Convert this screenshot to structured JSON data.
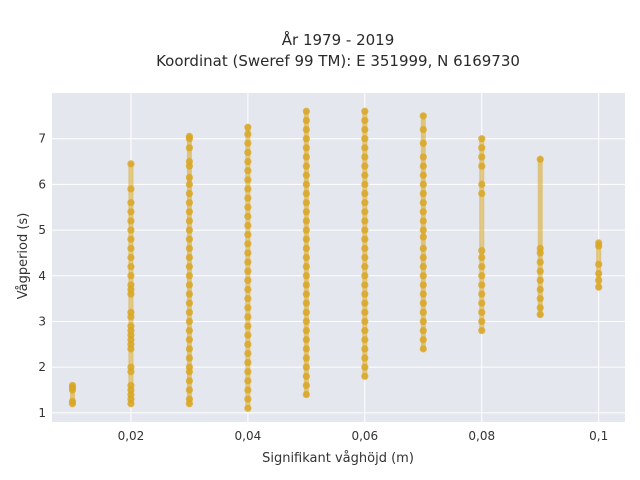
{
  "chart_data": {
    "type": "scatter",
    "title_line1": "År 1979 - 2019",
    "title_line2": "Koordinat (Sweref 99 TM): E 351999, N 6169730",
    "xlabel": "Signifikant våghöjd (m)",
    "ylabel": "Vågperiod (s)",
    "xlim": [
      0.0065,
      0.1045
    ],
    "ylim": [
      0.8,
      8.0
    ],
    "xticks": [
      0.02,
      0.04,
      0.06,
      0.08,
      0.1
    ],
    "xtick_labels": [
      "0,02",
      "0,04",
      "0,06",
      "0,08",
      "0,1"
    ],
    "yticks": [
      1,
      2,
      3,
      4,
      5,
      6,
      7
    ],
    "ytick_labels": [
      "1",
      "2",
      "3",
      "4",
      "5",
      "6",
      "7"
    ],
    "grid": true,
    "legend": "none",
    "colors": {
      "plot_bg": "#e5e7ee",
      "grid": "#ffffff",
      "marker": "#d9a521"
    },
    "series": [
      {
        "values": [
          [
            0.01,
            1.2
          ],
          [
            0.01,
            1.25
          ],
          [
            0.01,
            1.5
          ],
          [
            0.01,
            1.55
          ],
          [
            0.01,
            1.6
          ],
          [
            0.02,
            1.2
          ],
          [
            0.02,
            1.3
          ],
          [
            0.02,
            1.4
          ],
          [
            0.02,
            1.5
          ],
          [
            0.02,
            1.6
          ],
          [
            0.02,
            1.9
          ],
          [
            0.02,
            2.0
          ],
          [
            0.02,
            2.4
          ],
          [
            0.02,
            2.5
          ],
          [
            0.02,
            2.6
          ],
          [
            0.02,
            2.7
          ],
          [
            0.02,
            2.8
          ],
          [
            0.02,
            2.9
          ],
          [
            0.02,
            3.1
          ],
          [
            0.02,
            3.2
          ],
          [
            0.02,
            3.6
          ],
          [
            0.02,
            3.7
          ],
          [
            0.02,
            3.8
          ],
          [
            0.02,
            4.0
          ],
          [
            0.02,
            4.2
          ],
          [
            0.02,
            4.4
          ],
          [
            0.02,
            4.6
          ],
          [
            0.02,
            4.8
          ],
          [
            0.02,
            5.0
          ],
          [
            0.02,
            5.2
          ],
          [
            0.02,
            5.4
          ],
          [
            0.02,
            5.6
          ],
          [
            0.02,
            5.9
          ],
          [
            0.02,
            6.45
          ],
          [
            0.03,
            1.2
          ],
          [
            0.03,
            1.3
          ],
          [
            0.03,
            1.5
          ],
          [
            0.03,
            1.7
          ],
          [
            0.03,
            1.9
          ],
          [
            0.03,
            2.0
          ],
          [
            0.03,
            2.2
          ],
          [
            0.03,
            2.4
          ],
          [
            0.03,
            2.6
          ],
          [
            0.03,
            2.8
          ],
          [
            0.03,
            3.0
          ],
          [
            0.03,
            3.2
          ],
          [
            0.03,
            3.4
          ],
          [
            0.03,
            3.6
          ],
          [
            0.03,
            3.8
          ],
          [
            0.03,
            4.0
          ],
          [
            0.03,
            4.2
          ],
          [
            0.03,
            4.4
          ],
          [
            0.03,
            4.6
          ],
          [
            0.03,
            4.8
          ],
          [
            0.03,
            5.0
          ],
          [
            0.03,
            5.2
          ],
          [
            0.03,
            5.4
          ],
          [
            0.03,
            5.6
          ],
          [
            0.03,
            5.8
          ],
          [
            0.03,
            6.0
          ],
          [
            0.03,
            6.15
          ],
          [
            0.03,
            6.4
          ],
          [
            0.03,
            6.5
          ],
          [
            0.03,
            6.8
          ],
          [
            0.03,
            7.0
          ],
          [
            0.03,
            7.05
          ],
          [
            0.04,
            1.1
          ],
          [
            0.04,
            1.3
          ],
          [
            0.04,
            1.5
          ],
          [
            0.04,
            1.7
          ],
          [
            0.04,
            1.9
          ],
          [
            0.04,
            2.1
          ],
          [
            0.04,
            2.3
          ],
          [
            0.04,
            2.5
          ],
          [
            0.04,
            2.7
          ],
          [
            0.04,
            2.9
          ],
          [
            0.04,
            3.1
          ],
          [
            0.04,
            3.3
          ],
          [
            0.04,
            3.5
          ],
          [
            0.04,
            3.7
          ],
          [
            0.04,
            3.9
          ],
          [
            0.04,
            4.1
          ],
          [
            0.04,
            4.3
          ],
          [
            0.04,
            4.5
          ],
          [
            0.04,
            4.7
          ],
          [
            0.04,
            4.9
          ],
          [
            0.04,
            5.1
          ],
          [
            0.04,
            5.3
          ],
          [
            0.04,
            5.5
          ],
          [
            0.04,
            5.7
          ],
          [
            0.04,
            5.9
          ],
          [
            0.04,
            6.1
          ],
          [
            0.04,
            6.3
          ],
          [
            0.04,
            6.5
          ],
          [
            0.04,
            6.7
          ],
          [
            0.04,
            6.9
          ],
          [
            0.04,
            7.1
          ],
          [
            0.04,
            7.25
          ],
          [
            0.05,
            1.4
          ],
          [
            0.05,
            1.6
          ],
          [
            0.05,
            1.8
          ],
          [
            0.05,
            2.0
          ],
          [
            0.05,
            2.2
          ],
          [
            0.05,
            2.4
          ],
          [
            0.05,
            2.6
          ],
          [
            0.05,
            2.8
          ],
          [
            0.05,
            3.0
          ],
          [
            0.05,
            3.2
          ],
          [
            0.05,
            3.4
          ],
          [
            0.05,
            3.6
          ],
          [
            0.05,
            3.8
          ],
          [
            0.05,
            4.0
          ],
          [
            0.05,
            4.2
          ],
          [
            0.05,
            4.4
          ],
          [
            0.05,
            4.6
          ],
          [
            0.05,
            4.8
          ],
          [
            0.05,
            5.0
          ],
          [
            0.05,
            5.2
          ],
          [
            0.05,
            5.4
          ],
          [
            0.05,
            5.6
          ],
          [
            0.05,
            5.8
          ],
          [
            0.05,
            6.0
          ],
          [
            0.05,
            6.2
          ],
          [
            0.05,
            6.4
          ],
          [
            0.05,
            6.6
          ],
          [
            0.05,
            6.8
          ],
          [
            0.05,
            7.0
          ],
          [
            0.05,
            7.2
          ],
          [
            0.05,
            7.4
          ],
          [
            0.05,
            7.6
          ],
          [
            0.06,
            1.8
          ],
          [
            0.06,
            2.0
          ],
          [
            0.06,
            2.2
          ],
          [
            0.06,
            2.4
          ],
          [
            0.06,
            2.6
          ],
          [
            0.06,
            2.8
          ],
          [
            0.06,
            3.0
          ],
          [
            0.06,
            3.2
          ],
          [
            0.06,
            3.4
          ],
          [
            0.06,
            3.6
          ],
          [
            0.06,
            3.8
          ],
          [
            0.06,
            4.0
          ],
          [
            0.06,
            4.2
          ],
          [
            0.06,
            4.4
          ],
          [
            0.06,
            4.6
          ],
          [
            0.06,
            4.8
          ],
          [
            0.06,
            5.0
          ],
          [
            0.06,
            5.2
          ],
          [
            0.06,
            5.4
          ],
          [
            0.06,
            5.6
          ],
          [
            0.06,
            5.8
          ],
          [
            0.06,
            6.0
          ],
          [
            0.06,
            6.2
          ],
          [
            0.06,
            6.4
          ],
          [
            0.06,
            6.6
          ],
          [
            0.06,
            6.8
          ],
          [
            0.06,
            7.0
          ],
          [
            0.06,
            7.2
          ],
          [
            0.06,
            7.4
          ],
          [
            0.06,
            7.6
          ],
          [
            0.07,
            2.4
          ],
          [
            0.07,
            2.6
          ],
          [
            0.07,
            2.8
          ],
          [
            0.07,
            3.0
          ],
          [
            0.07,
            3.2
          ],
          [
            0.07,
            3.4
          ],
          [
            0.07,
            3.6
          ],
          [
            0.07,
            3.8
          ],
          [
            0.07,
            4.0
          ],
          [
            0.07,
            4.2
          ],
          [
            0.07,
            4.4
          ],
          [
            0.07,
            4.6
          ],
          [
            0.07,
            4.85
          ],
          [
            0.07,
            5.0
          ],
          [
            0.07,
            5.2
          ],
          [
            0.07,
            5.4
          ],
          [
            0.07,
            5.6
          ],
          [
            0.07,
            5.8
          ],
          [
            0.07,
            6.0
          ],
          [
            0.07,
            6.2
          ],
          [
            0.07,
            6.4
          ],
          [
            0.07,
            6.6
          ],
          [
            0.07,
            6.9
          ],
          [
            0.07,
            7.2
          ],
          [
            0.07,
            7.5
          ],
          [
            0.08,
            2.8
          ],
          [
            0.08,
            3.0
          ],
          [
            0.08,
            3.2
          ],
          [
            0.08,
            3.4
          ],
          [
            0.08,
            3.6
          ],
          [
            0.08,
            3.8
          ],
          [
            0.08,
            4.0
          ],
          [
            0.08,
            4.2
          ],
          [
            0.08,
            4.4
          ],
          [
            0.08,
            4.55
          ],
          [
            0.08,
            5.8
          ],
          [
            0.08,
            6.0
          ],
          [
            0.08,
            6.4
          ],
          [
            0.08,
            6.6
          ],
          [
            0.08,
            6.8
          ],
          [
            0.08,
            7.0
          ],
          [
            0.09,
            3.15
          ],
          [
            0.09,
            3.3
          ],
          [
            0.09,
            3.5
          ],
          [
            0.09,
            3.7
          ],
          [
            0.09,
            3.9
          ],
          [
            0.09,
            4.1
          ],
          [
            0.09,
            4.3
          ],
          [
            0.09,
            4.5
          ],
          [
            0.09,
            4.6
          ],
          [
            0.09,
            6.55
          ],
          [
            0.1,
            3.75
          ],
          [
            0.1,
            3.9
          ],
          [
            0.1,
            4.05
          ],
          [
            0.1,
            4.25
          ],
          [
            0.1,
            4.65
          ],
          [
            0.1,
            4.72
          ]
        ]
      }
    ]
  }
}
